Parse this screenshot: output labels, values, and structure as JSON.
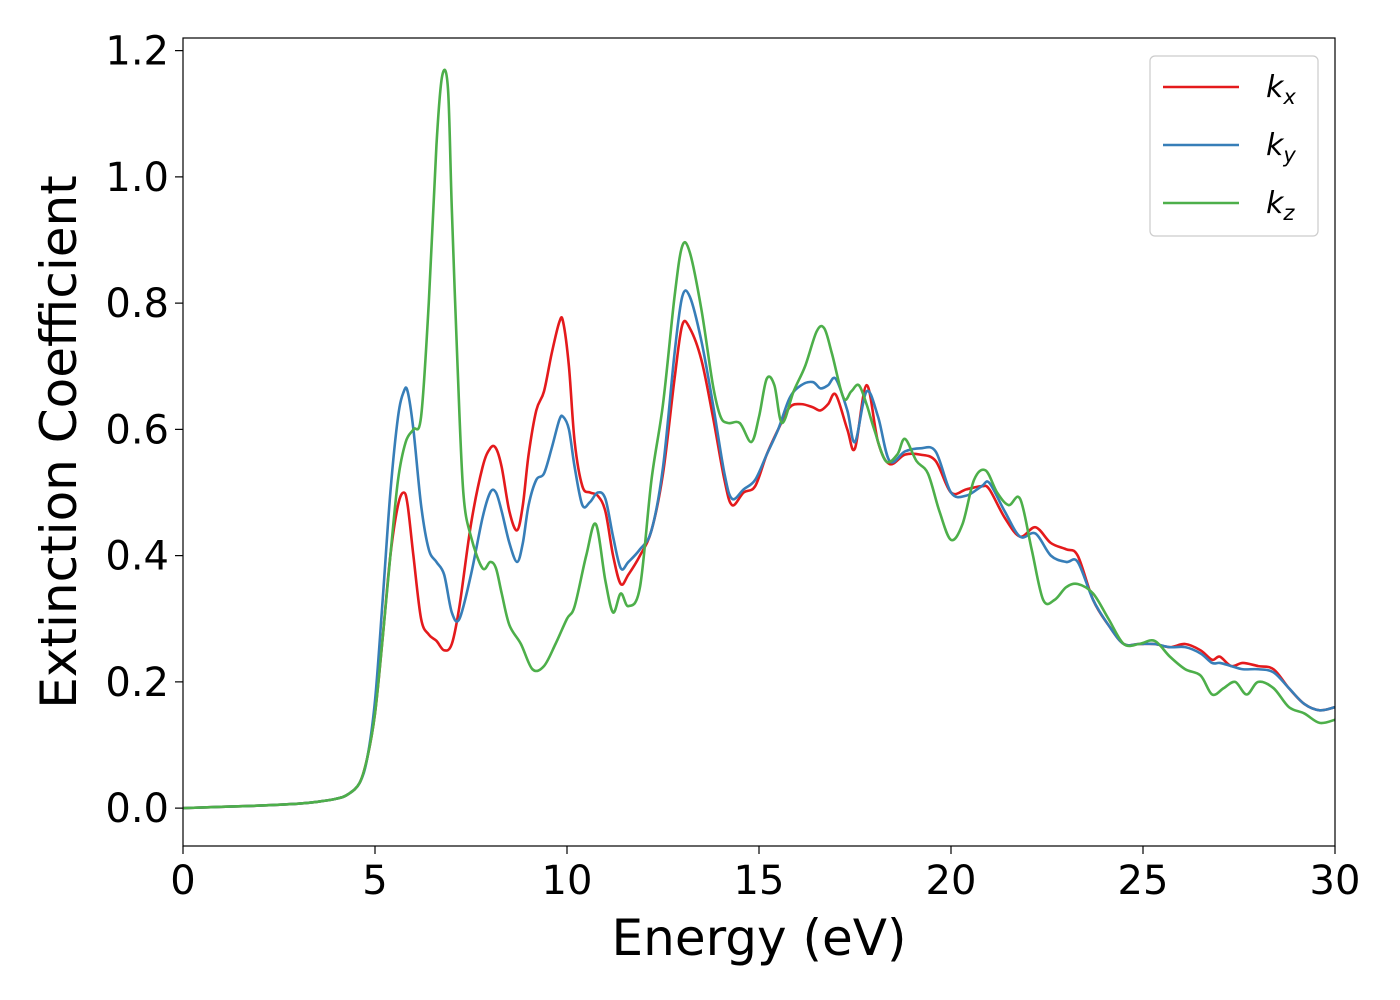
{
  "chart_data": {
    "type": "line",
    "xlabel": "Energy (eV)",
    "ylabel": "Extinction Coefficient",
    "xlim": [
      0,
      30
    ],
    "ylim": [
      -0.06,
      1.22
    ],
    "xticks": [
      0,
      5,
      10,
      15,
      20,
      25,
      30
    ],
    "xtick_labels": [
      "0",
      "5",
      "10",
      "15",
      "20",
      "25",
      "30"
    ],
    "yticks": [
      0.0,
      0.2,
      0.4,
      0.6,
      0.8,
      1.0,
      1.2
    ],
    "ytick_labels": [
      "0.0",
      "0.2",
      "0.4",
      "0.6",
      "0.8",
      "1.0",
      "1.2"
    ],
    "grid": false,
    "legend_position": "top-right",
    "series": [
      {
        "name": "kx",
        "label_base": "k",
        "label_sub": "x",
        "color": "#e41a1c",
        "x": [
          0,
          1,
          2,
          3,
          3.5,
          4,
          4.3,
          4.6,
          4.8,
          5.0,
          5.2,
          5.4,
          5.6,
          5.75,
          5.85,
          6.0,
          6.2,
          6.4,
          6.6,
          6.8,
          7.0,
          7.2,
          7.5,
          7.8,
          8.0,
          8.15,
          8.3,
          8.5,
          8.7,
          8.85,
          9.0,
          9.2,
          9.4,
          9.6,
          9.8,
          9.9,
          10.05,
          10.2,
          10.4,
          10.6,
          10.8,
          11.0,
          11.2,
          11.4,
          11.6,
          11.9,
          12.2,
          12.5,
          12.8,
          13.0,
          13.2,
          13.5,
          13.8,
          14.1,
          14.3,
          14.6,
          14.9,
          15.2,
          15.5,
          15.8,
          16.1,
          16.4,
          16.6,
          16.8,
          17.0,
          17.3,
          17.5,
          17.8,
          18.1,
          18.4,
          18.8,
          19.2,
          19.6,
          20.0,
          20.4,
          20.8,
          21.0,
          21.4,
          21.8,
          22.2,
          22.6,
          23.0,
          23.3,
          23.7,
          24.1,
          24.5,
          24.9,
          25.3,
          25.7,
          26.1,
          26.5,
          26.8,
          27.0,
          27.3,
          27.6,
          28.0,
          28.4,
          28.8,
          29.2,
          29.6,
          30
        ],
        "y": [
          0.0,
          0.002,
          0.004,
          0.007,
          0.01,
          0.015,
          0.022,
          0.04,
          0.08,
          0.15,
          0.27,
          0.4,
          0.48,
          0.5,
          0.48,
          0.4,
          0.3,
          0.275,
          0.265,
          0.25,
          0.26,
          0.32,
          0.45,
          0.54,
          0.57,
          0.57,
          0.54,
          0.47,
          0.44,
          0.48,
          0.56,
          0.63,
          0.66,
          0.72,
          0.77,
          0.77,
          0.7,
          0.58,
          0.51,
          0.5,
          0.495,
          0.47,
          0.4,
          0.355,
          0.37,
          0.4,
          0.44,
          0.53,
          0.68,
          0.765,
          0.76,
          0.71,
          0.62,
          0.52,
          0.48,
          0.5,
          0.51,
          0.56,
          0.6,
          0.635,
          0.64,
          0.635,
          0.63,
          0.64,
          0.655,
          0.6,
          0.57,
          0.67,
          0.58,
          0.545,
          0.56,
          0.56,
          0.55,
          0.5,
          0.505,
          0.51,
          0.505,
          0.46,
          0.43,
          0.445,
          0.42,
          0.41,
          0.4,
          0.33,
          0.29,
          0.26,
          0.26,
          0.26,
          0.255,
          0.26,
          0.25,
          0.235,
          0.24,
          0.225,
          0.23,
          0.225,
          0.22,
          0.19,
          0.165,
          0.155,
          0.16
        ]
      },
      {
        "name": "ky",
        "label_base": "k",
        "label_sub": "y",
        "color": "#377eb8",
        "x": [
          0,
          1,
          2,
          3,
          3.5,
          4,
          4.3,
          4.6,
          4.8,
          5.0,
          5.2,
          5.4,
          5.6,
          5.75,
          5.85,
          6.0,
          6.2,
          6.4,
          6.6,
          6.8,
          7.0,
          7.2,
          7.5,
          7.8,
          8.0,
          8.15,
          8.3,
          8.5,
          8.7,
          8.85,
          9.0,
          9.2,
          9.4,
          9.6,
          9.8,
          9.9,
          10.05,
          10.2,
          10.4,
          10.6,
          10.8,
          11.0,
          11.2,
          11.4,
          11.6,
          11.9,
          12.2,
          12.5,
          12.8,
          13.0,
          13.2,
          13.5,
          13.8,
          14.1,
          14.3,
          14.6,
          14.9,
          15.2,
          15.5,
          15.8,
          16.1,
          16.4,
          16.6,
          16.8,
          17.0,
          17.3,
          17.5,
          17.8,
          18.1,
          18.4,
          18.8,
          19.2,
          19.6,
          20.0,
          20.4,
          20.8,
          21.0,
          21.4,
          21.8,
          22.2,
          22.6,
          23.0,
          23.3,
          23.7,
          24.1,
          24.5,
          24.9,
          25.3,
          25.7,
          26.1,
          26.5,
          26.8,
          27.0,
          27.3,
          27.6,
          28.0,
          28.4,
          28.8,
          29.2,
          29.6,
          30
        ],
        "y": [
          0.0,
          0.002,
          0.004,
          0.007,
          0.01,
          0.015,
          0.022,
          0.04,
          0.08,
          0.17,
          0.33,
          0.5,
          0.62,
          0.66,
          0.66,
          0.6,
          0.48,
          0.41,
          0.39,
          0.37,
          0.31,
          0.3,
          0.37,
          0.46,
          0.5,
          0.5,
          0.47,
          0.42,
          0.39,
          0.42,
          0.48,
          0.52,
          0.53,
          0.57,
          0.615,
          0.62,
          0.6,
          0.54,
          0.48,
          0.485,
          0.5,
          0.49,
          0.43,
          0.38,
          0.39,
          0.41,
          0.44,
          0.54,
          0.72,
          0.81,
          0.81,
          0.74,
          0.64,
          0.53,
          0.49,
          0.505,
          0.52,
          0.56,
          0.6,
          0.65,
          0.67,
          0.675,
          0.665,
          0.67,
          0.68,
          0.63,
          0.58,
          0.66,
          0.62,
          0.55,
          0.565,
          0.57,
          0.565,
          0.5,
          0.495,
          0.51,
          0.515,
          0.47,
          0.43,
          0.435,
          0.4,
          0.39,
          0.39,
          0.33,
          0.29,
          0.26,
          0.26,
          0.26,
          0.255,
          0.255,
          0.245,
          0.23,
          0.23,
          0.225,
          0.22,
          0.22,
          0.215,
          0.19,
          0.165,
          0.155,
          0.16
        ]
      },
      {
        "name": "kz",
        "label_base": "k",
        "label_sub": "z",
        "color": "#4daf4a",
        "x": [
          0,
          1,
          2,
          3,
          3.5,
          4,
          4.3,
          4.6,
          4.8,
          5.0,
          5.2,
          5.4,
          5.6,
          5.8,
          6.0,
          6.2,
          6.4,
          6.6,
          6.75,
          6.9,
          7.0,
          7.15,
          7.3,
          7.5,
          7.8,
          8.0,
          8.15,
          8.3,
          8.5,
          8.8,
          9.1,
          9.4,
          9.7,
          10.0,
          10.2,
          10.5,
          10.75,
          11.0,
          11.2,
          11.4,
          11.6,
          11.9,
          12.2,
          12.5,
          12.8,
          13.0,
          13.2,
          13.5,
          13.8,
          14.0,
          14.2,
          14.5,
          14.8,
          15.0,
          15.2,
          15.4,
          15.6,
          15.9,
          16.2,
          16.5,
          16.7,
          16.9,
          17.2,
          17.4,
          17.6,
          17.8,
          18.0,
          18.3,
          18.6,
          18.8,
          19.1,
          19.4,
          19.7,
          20.0,
          20.3,
          20.6,
          20.9,
          21.2,
          21.5,
          21.8,
          22.1,
          22.4,
          22.7,
          23.0,
          23.3,
          23.7,
          24.1,
          24.5,
          24.9,
          25.3,
          25.7,
          26.1,
          26.5,
          26.8,
          27.1,
          27.4,
          27.7,
          28.0,
          28.4,
          28.8,
          29.2,
          29.6,
          30
        ],
        "y": [
          0.0,
          0.002,
          0.004,
          0.007,
          0.01,
          0.015,
          0.022,
          0.04,
          0.08,
          0.15,
          0.27,
          0.4,
          0.52,
          0.58,
          0.6,
          0.62,
          0.8,
          1.05,
          1.16,
          1.14,
          0.95,
          0.7,
          0.5,
          0.43,
          0.38,
          0.39,
          0.38,
          0.34,
          0.29,
          0.26,
          0.22,
          0.225,
          0.26,
          0.3,
          0.32,
          0.4,
          0.45,
          0.36,
          0.31,
          0.34,
          0.32,
          0.35,
          0.52,
          0.64,
          0.81,
          0.89,
          0.88,
          0.79,
          0.67,
          0.62,
          0.61,
          0.61,
          0.58,
          0.62,
          0.68,
          0.67,
          0.61,
          0.66,
          0.7,
          0.755,
          0.76,
          0.72,
          0.65,
          0.66,
          0.67,
          0.64,
          0.6,
          0.55,
          0.56,
          0.585,
          0.55,
          0.53,
          0.47,
          0.425,
          0.45,
          0.52,
          0.535,
          0.5,
          0.48,
          0.49,
          0.41,
          0.33,
          0.33,
          0.35,
          0.355,
          0.34,
          0.3,
          0.26,
          0.26,
          0.265,
          0.24,
          0.22,
          0.21,
          0.18,
          0.19,
          0.2,
          0.18,
          0.2,
          0.19,
          0.16,
          0.15,
          0.135,
          0.14
        ]
      }
    ]
  }
}
